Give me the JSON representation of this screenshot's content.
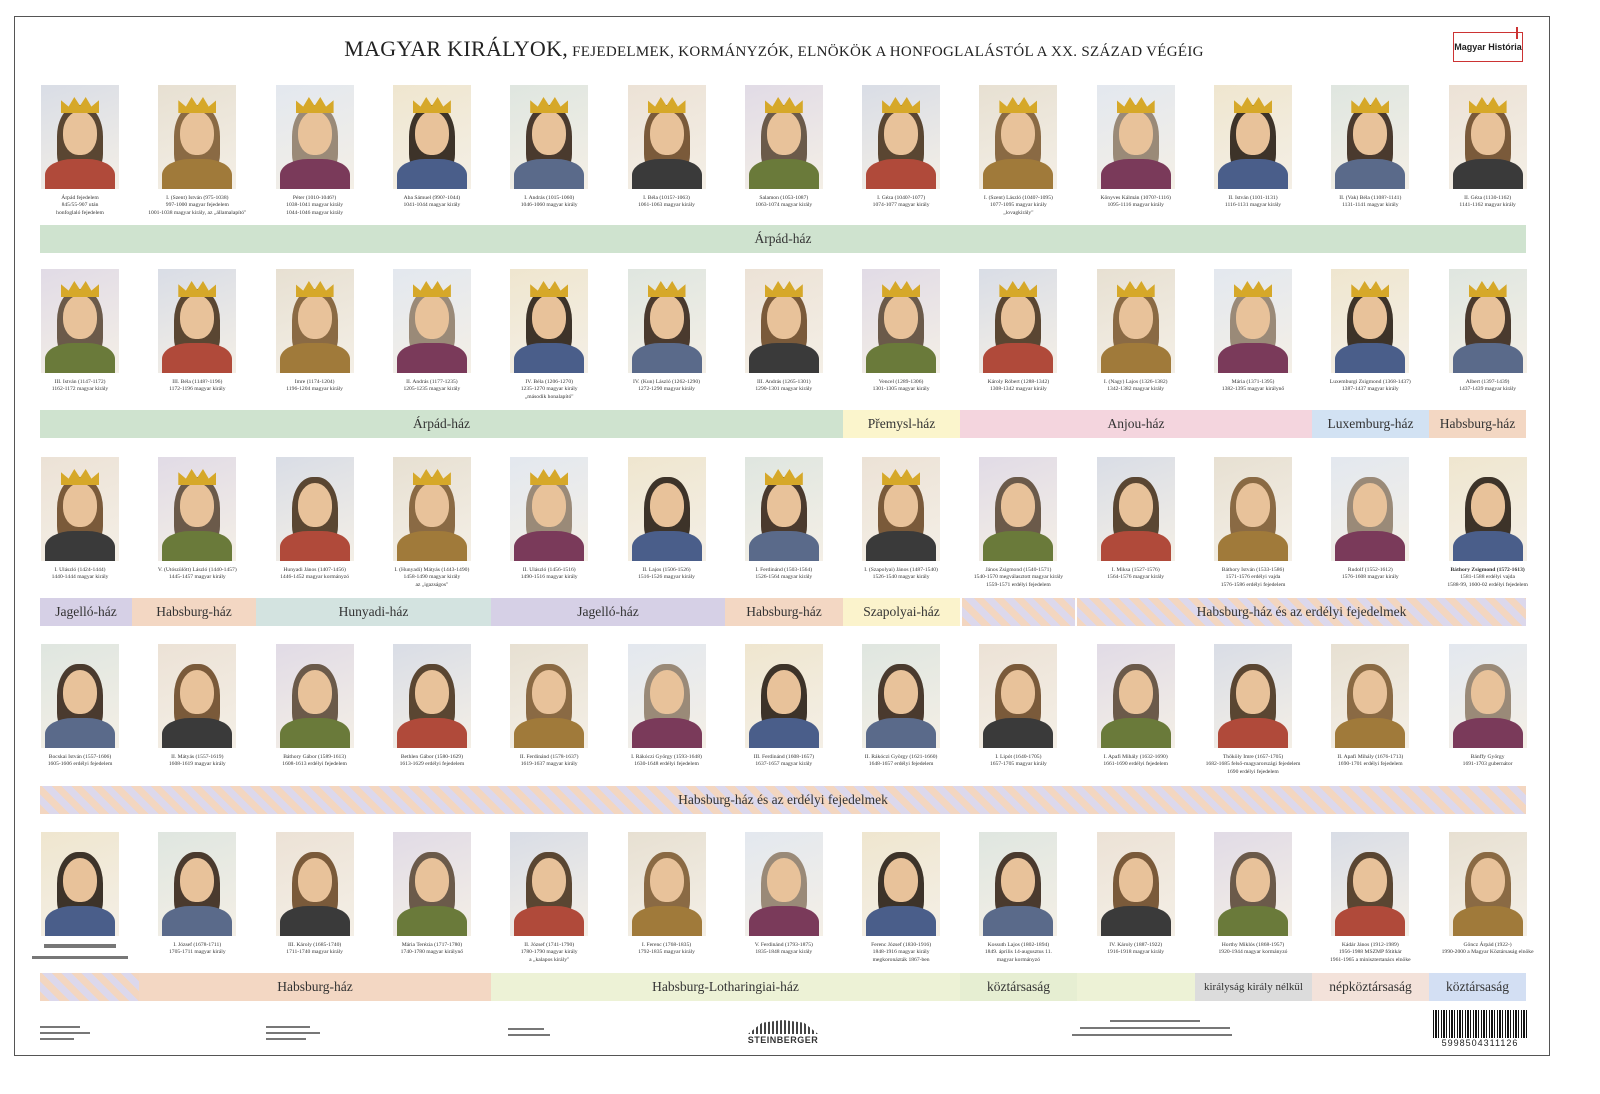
{
  "title": {
    "main": "MAGYAR KIRÁLYOK,",
    "rest": " FEJEDELMEK, KORMÁNYZÓK, ELNÖKÖK A HONFOGLALÁSTÓL A XX. SZÁZAD VÉGÉIG"
  },
  "logo": "Magyar História",
  "rows": [
    [
      [
        "Árpád fejedelem",
        "845/55-907 után",
        "honfoglaló fejedelem"
      ],
      [
        "I. (Szent) István (975-1038)",
        "997-1000 magyar fejedelem",
        "1001-1038 magyar király, az „államalapító\""
      ],
      [
        "Péter (1010-1046?)",
        "1038-1041 magyar király",
        "1044-1046 magyar király"
      ],
      [
        "Aba Sámuel (990?-1044)",
        "1041-1044 magyar király"
      ],
      [
        "I. András (1015-1060)",
        "1046-1060 magyar király"
      ],
      [
        "I. Béla (1015?-1063)",
        "1061-1063 magyar király"
      ],
      [
        "Salamon (1053-1087)",
        "1063-1074 magyar király"
      ],
      [
        "I. Géza (1040?-1077)",
        "1074-1077 magyar király"
      ],
      [
        "I. (Szent) László (1040?-1095)",
        "1077-1095 magyar király",
        "„lovagkirály\""
      ],
      [
        "Könyves Kálmán (1070?-1116)",
        "1095-1116 magyar király"
      ],
      [
        "II. István (1101-1131)",
        "1116-1131 magyar király"
      ],
      [
        "II. (Vak) Béla (1108?-1141)",
        "1131-1141 magyar király"
      ],
      [
        "II. Géza (1130-1162)",
        "1141-1162 magyar király"
      ]
    ],
    [
      [
        "III. István (1147-1172)",
        "1162-1172 magyar király"
      ],
      [
        "III. Béla (1148?-1196)",
        "1172-1196 magyar király"
      ],
      [
        "Imre (1174-1204)",
        "1196-1204 magyar király"
      ],
      [
        "II. András (1177-1235)",
        "1205-1235 magyar király"
      ],
      [
        "IV. Béla (1206-1270)",
        "1235-1270 magyar király",
        "„második honalapító\""
      ],
      [
        "IV. (Kun) László (1262-1290)",
        "1272-1290 magyar király"
      ],
      [
        "III. András (1265-1301)",
        "1290-1301 magyar király"
      ],
      [
        "Vencel (1289-1306)",
        "1301-1305 magyar király"
      ],
      [
        "Károly Róbert (1288-1342)",
        "1308-1342 magyar király"
      ],
      [
        "I. (Nagy) Lajos (1326-1382)",
        "1342-1382 magyar király"
      ],
      [
        "Mária (1371-1395)",
        "1382-1395 magyar királynő"
      ],
      [
        "Luxemburgi Zsigmond (1368-1437)",
        "1387-1437 magyar király"
      ],
      [
        "Albert (1397-1439)",
        "1437-1439 magyar király"
      ]
    ],
    [
      [
        "I. Ulászló (1424-1444)",
        "1440-1444 magyar király"
      ],
      [
        "V. (Utószülött) László (1440-1457)",
        "1445-1457 magyar király"
      ],
      [
        "Hunyadi János (1407-1456)",
        "1446-1452 magyar kormányzó"
      ],
      [
        "I. (Hunyadi) Mátyás (1443-1490)",
        "1458-1490 magyar király",
        "az „igazságos\""
      ],
      [
        "II. Ulászló (1456-1516)",
        "1490-1516 magyar király"
      ],
      [
        "II. Lajos (1506-1526)",
        "1516-1526 magyar király"
      ],
      [
        "I. Ferdinánd (1503-1564)",
        "1526-1564 magyar király"
      ],
      [
        "I. (Szapolyai) János (1487-1540)",
        "1526-1540 magyar király"
      ],
      [
        "János Zsigmond (1540-1571)",
        "1540-1570 megválasztott magyar király",
        "1559-1571 erdélyi fejedelem"
      ],
      [
        "I. Miksa (1527-1576)",
        "1564-1576 magyar király"
      ],
      [
        "Báthory István (1533-1586)",
        "1571-1576 erdélyi vajda",
        "1576-1586 erdélyi fejedelem"
      ],
      [
        "Rudolf (1552-1612)",
        "1576-1608 magyar király"
      ],
      [
        "Báthory Zsigmond (1572-1613)",
        "1581-1588 erdélyi vajda",
        "1588-99, 1600-02 erdélyi fejedelem"
      ]
    ],
    [
      [
        "Bocskai István (1557-1606)",
        "1605-1606 erdélyi fejedelem"
      ],
      [
        "II. Mátyás (1557-1619)",
        "1608-1619 magyar király"
      ],
      [
        "Báthory Gábor (1589-1613)",
        "1608-1613 erdélyi fejedelem"
      ],
      [
        "Bethlen Gábor (1580-1629)",
        "1613-1629 erdélyi fejedelem"
      ],
      [
        "II. Ferdinánd (1578-1637)",
        "1619-1637 magyar király"
      ],
      [
        "I. Rákóczi György (1593-1648)",
        "1630-1648 erdélyi fejedelem"
      ],
      [
        "III. Ferdinánd (1608-1657)",
        "1637-1657 magyar király"
      ],
      [
        "II. Rákóczi György (1621-1660)",
        "1648-1657 erdélyi fejedelem"
      ],
      [
        "I. Lipót (1640-1705)",
        "1657-1705 magyar király"
      ],
      [
        "I. Apafi Mihály (1632-1690)",
        "1661-1690 erdélyi fejedelem"
      ],
      [
        "Thököly Imre (1657-1705)",
        "1682-1685 felső-magyarországi fejedelem",
        "1690 erdélyi fejedelem"
      ],
      [
        "II. Apafi Mihály (1676-1713)",
        "1690-1701 erdélyi fejedelem"
      ],
      [
        "Bánffy György",
        "1691-1703 gubernátor"
      ]
    ],
    [
      [],
      [
        "I. József (1678-1711)",
        "1705-1711 magyar király"
      ],
      [
        "III. Károly (1685-1740)",
        "1711-1740 magyar király"
      ],
      [
        "Mária Terézia (1717-1780)",
        "1740-1780 magyar királynő"
      ],
      [
        "II. József (1741-1790)",
        "1780-1790 magyar király",
        "a „kalapos király\""
      ],
      [
        "I. Ferenc (1768-1835)",
        "1792-1835 magyar király"
      ],
      [
        "V. Ferdinánd (1793-1875)",
        "1835-1848 magyar király"
      ],
      [
        "Ferenc József (1830-1916)",
        "1848-1916 magyar király",
        "megkoronázták 1867-ben"
      ],
      [
        "Kossuth Lajos (1802-1894)",
        "1849. április 14-augusztus 11.",
        "magyar kormányzó"
      ],
      [
        "IV. Károly (1887-1922)",
        "1916-1918 magyar király"
      ],
      [
        "Horthy Miklós (1868-1957)",
        "1920-1944 magyar kormányzó"
      ],
      [
        "Kádár János (1912-1989)",
        "1956-1988 MSZMP főtitkár",
        "1961-1965 a minisztertanács elnöke"
      ],
      [
        "Göncz Árpád (1922-)",
        "1990-2000 a Magyar Köztársaság elnöke"
      ]
    ]
  ],
  "bands": {
    "row1": [
      "Árpád-ház"
    ],
    "row2": [
      "Árpád-ház",
      "Přemysl-ház",
      "Anjou-ház",
      "Luxemburg-ház",
      "Habsburg-ház"
    ],
    "row3": [
      "Jagelló-ház",
      "Habsburg-ház",
      "Hunyadi-ház",
      "Jagelló-ház",
      "Habsburg-ház",
      "Szapolyai-ház",
      "Habsburg-ház és az erdélyi fejedelmek"
    ],
    "row4": [
      "Habsburg-ház és az erdélyi fejedelmek"
    ],
    "row5": [
      "Habsburg-ház",
      "Habsburg-Lotharingiai-ház",
      "köztársaság",
      "királyság király nélkül",
      "népköztársaság",
      "köztársaság"
    ]
  },
  "colors": {
    "arpad": "#cfe3cf",
    "premysl": "#fbf5cc",
    "anjou": "#f4d5de",
    "luxemburg": "#d2e2f3",
    "habsburg": "#f3d7c3",
    "jagello": "#d6d0e6",
    "hunyadi": "#d3e3e0",
    "szapolyai": "#fbf3cc",
    "lotharingiai": "#edf2d6",
    "koztarsasag_1849": "#e6eed2",
    "kiralysag": "#dcdcdc",
    "nepkoztarsasag": "#f3e2da",
    "koztarsasag": "#d3dff3"
  },
  "footer": {
    "brand": "STEINBERGER",
    "barcode": "5998504311126"
  }
}
